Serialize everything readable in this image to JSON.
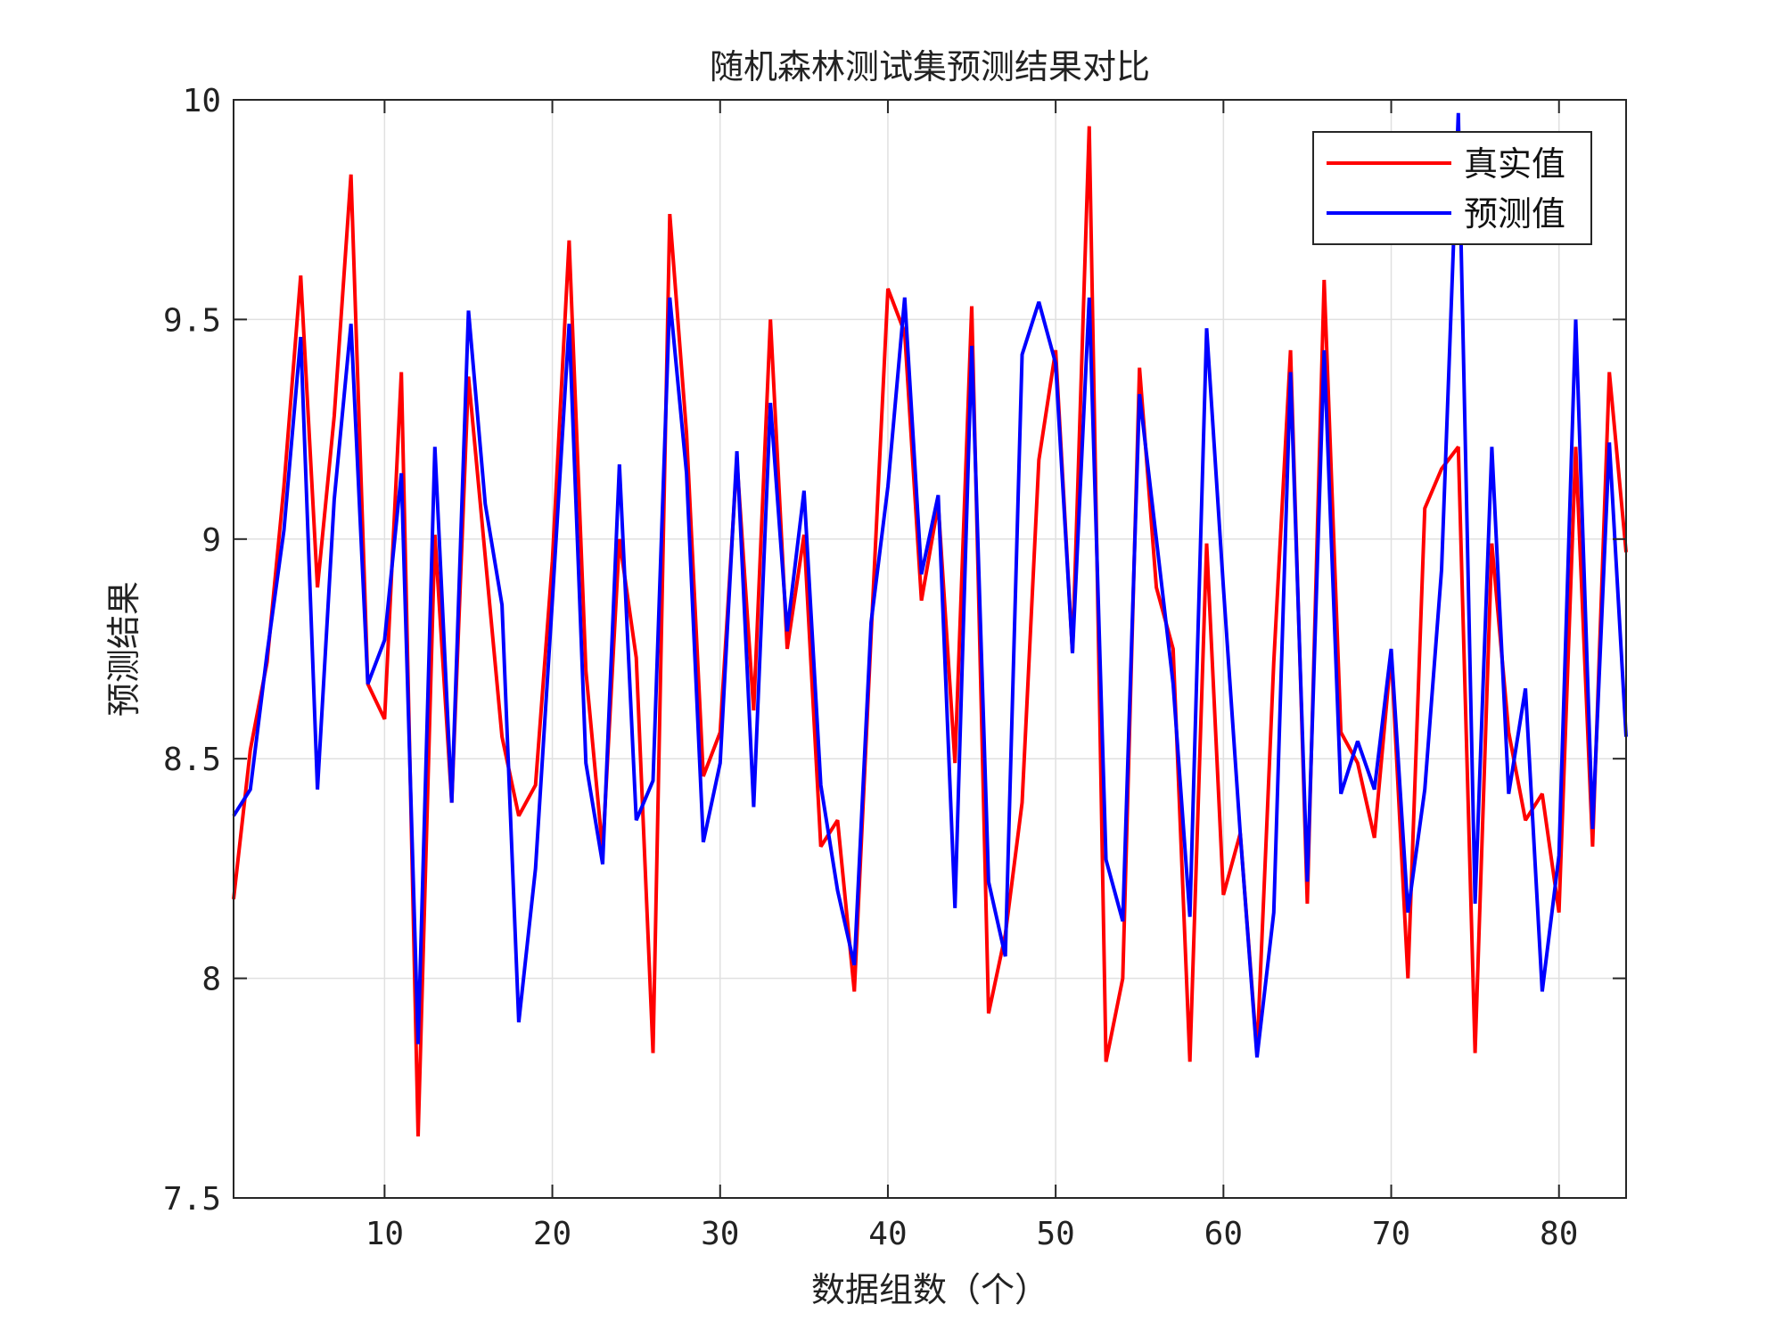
{
  "chart_data": {
    "type": "line",
    "title": "随机森林测试集预测结果对比",
    "xlabel": "数据组数（个）",
    "ylabel": "预测结果",
    "xlim": [
      1,
      84
    ],
    "ylim": [
      7.5,
      10
    ],
    "xticks": [
      10,
      20,
      30,
      40,
      50,
      60,
      70,
      80
    ],
    "xtick_labels": [
      "10",
      "20",
      "30",
      "40",
      "50",
      "60",
      "70",
      "80"
    ],
    "yticks": [
      7.5,
      8,
      8.5,
      9,
      9.5,
      10
    ],
    "ytick_labels": [
      "7.5",
      "8",
      "8.5",
      "9",
      "9.5",
      "10"
    ],
    "grid": true,
    "legend_position": "top-right",
    "series": [
      {
        "name": "真实值",
        "color": "#ff0000",
        "values": [
          8.18,
          8.52,
          8.72,
          9.12,
          9.6,
          8.89,
          9.28,
          9.83,
          8.67,
          8.59,
          9.38,
          7.64,
          9.01,
          8.4,
          9.37,
          8.96,
          8.55,
          8.37,
          8.44,
          8.95,
          9.68,
          8.7,
          8.29,
          9.0,
          8.73,
          7.83,
          9.74,
          9.24,
          8.46,
          8.56,
          9.18,
          8.61,
          9.5,
          8.75,
          9.01,
          8.3,
          8.36,
          7.97,
          8.78,
          9.57,
          9.47,
          8.86,
          9.08,
          8.49,
          9.53,
          7.92,
          8.1,
          8.4,
          9.18,
          9.43,
          8.74,
          9.94,
          7.81,
          8.0,
          9.39,
          8.89,
          8.75,
          7.81,
          8.99,
          8.19,
          8.33,
          7.83,
          8.72,
          9.43,
          8.17,
          9.59,
          8.56,
          8.49,
          8.32,
          8.74,
          8.0,
          9.07,
          9.16,
          9.21,
          7.83,
          8.99,
          8.56,
          8.36,
          8.42,
          8.15,
          9.21,
          8.3,
          9.38,
          8.97
        ]
      },
      {
        "name": "预测值",
        "color": "#0000ff",
        "values": [
          8.37,
          8.43,
          8.74,
          9.02,
          9.46,
          8.43,
          9.09,
          9.49,
          8.67,
          8.77,
          9.15,
          7.85,
          9.21,
          8.4,
          9.52,
          9.08,
          8.85,
          7.9,
          8.25,
          8.86,
          9.49,
          8.49,
          8.26,
          9.17,
          8.36,
          8.45,
          9.55,
          9.15,
          8.31,
          8.49,
          9.2,
          8.39,
          9.31,
          8.79,
          9.11,
          8.44,
          8.2,
          8.03,
          8.81,
          9.12,
          9.55,
          8.92,
          9.1,
          8.16,
          9.44,
          8.22,
          8.05,
          9.42,
          9.54,
          9.4,
          8.74,
          9.55,
          8.27,
          8.13,
          9.33,
          9.0,
          8.67,
          8.14,
          9.48,
          8.89,
          8.33,
          7.82,
          8.15,
          9.38,
          8.22,
          9.43,
          8.42,
          8.54,
          8.43,
          8.75,
          8.15,
          8.43,
          8.93,
          9.97,
          8.17,
          9.21,
          8.42,
          8.66,
          7.97,
          8.28,
          9.5,
          8.34,
          9.22,
          8.55
        ]
      }
    ]
  }
}
